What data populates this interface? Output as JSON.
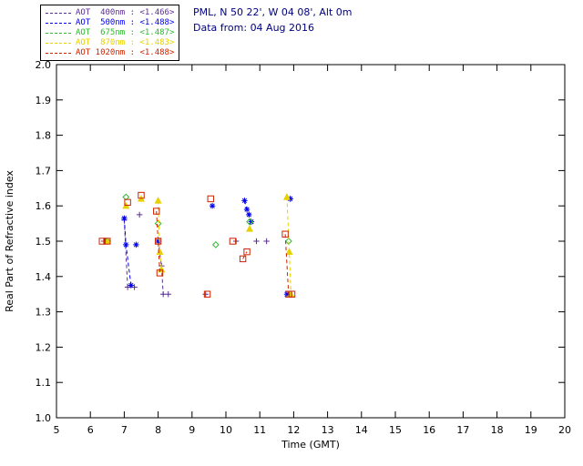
{
  "header": {
    "site_line": "PML, N 50 22', W 04 08', Alt 0m",
    "date_line": "Data from: 04 Aug 2016",
    "text_color": "#000080"
  },
  "chart_data": {
    "type": "scatter",
    "title": "",
    "xlabel": "Time (GMT)",
    "ylabel": "Real Part of Refractive index",
    "xlim": [
      5,
      20
    ],
    "ylim": [
      1.0,
      2.0
    ],
    "xticks": [
      5,
      6,
      7,
      8,
      9,
      10,
      11,
      12,
      13,
      14,
      15,
      16,
      17,
      18,
      19,
      20
    ],
    "yticks": [
      1.0,
      1.1,
      1.2,
      1.3,
      1.4,
      1.5,
      1.6,
      1.7,
      1.8,
      1.9,
      2.0
    ],
    "grid": false,
    "line_style": "dashed",
    "legend_position": "top-left",
    "series": [
      {
        "id": "400nm",
        "name": "AOT  400nm",
        "mean": "<1.466>",
        "color": "#5c2d91",
        "marker": "plus",
        "segments": [
          [
            [
              6.4,
              1.5
            ]
          ],
          [
            [
              7.0,
              1.56
            ],
            [
              7.1,
              1.37
            ]
          ],
          [
            [
              7.3,
              1.37
            ]
          ],
          [
            [
              7.45,
              1.575
            ]
          ],
          [
            [
              8.0,
              1.5
            ],
            [
              8.1,
              1.43
            ],
            [
              8.15,
              1.35
            ]
          ],
          [
            [
              8.3,
              1.35
            ]
          ],
          [
            [
              9.4,
              1.35
            ]
          ],
          [
            [
              10.3,
              1.5
            ]
          ],
          [
            [
              10.9,
              1.5
            ]
          ],
          [
            [
              11.2,
              1.5
            ]
          ],
          [
            [
              11.9,
              1.62
            ]
          ]
        ]
      },
      {
        "id": "500nm",
        "name": "AOT  500nm",
        "mean": "<1.488>",
        "color": "#0000ee",
        "marker": "asterisk",
        "segments": [
          [
            [
              6.45,
              1.5
            ]
          ],
          [
            [
              7.0,
              1.565
            ],
            [
              7.05,
              1.49
            ],
            [
              7.2,
              1.375
            ]
          ],
          [
            [
              7.35,
              1.49
            ]
          ],
          [
            [
              8.0,
              1.5
            ]
          ],
          [
            [
              9.6,
              1.6
            ]
          ],
          [
            [
              10.55,
              1.615
            ],
            [
              10.62,
              1.59
            ],
            [
              10.68,
              1.575
            ],
            [
              10.75,
              1.555
            ]
          ],
          [
            [
              11.9,
              1.62
            ]
          ],
          [
            [
              11.8,
              1.35
            ]
          ]
        ]
      },
      {
        "id": "675nm",
        "name": "AOT  675nm",
        "mean": "<1.487>",
        "color": "#2eb82e",
        "marker": "diamond",
        "segments": [
          [
            [
              6.5,
              1.5
            ]
          ],
          [
            [
              7.05,
              1.625
            ]
          ],
          [
            [
              8.0,
              1.55
            ]
          ],
          [
            [
              9.7,
              1.49
            ]
          ],
          [
            [
              10.7,
              1.555
            ]
          ],
          [
            [
              11.85,
              1.5
            ]
          ]
        ]
      },
      {
        "id": "870nm",
        "name": "AOT  870nm",
        "mean": "<1.483>",
        "color": "#e6d000",
        "marker": "triangle",
        "segments": [
          [
            [
              6.5,
              1.5
            ]
          ],
          [
            [
              7.05,
              1.6
            ]
          ],
          [
            [
              7.5,
              1.62
            ]
          ],
          [
            [
              8.0,
              1.615
            ],
            [
              8.05,
              1.47
            ],
            [
              8.1,
              1.42
            ]
          ],
          [
            [
              10.7,
              1.535
            ]
          ],
          [
            [
              11.8,
              1.625
            ],
            [
              11.87,
              1.47
            ],
            [
              11.92,
              1.35
            ]
          ]
        ]
      },
      {
        "id": "1020nm",
        "name": "AOT 1020nm",
        "mean": "<1.488>",
        "color": "#cc2200",
        "marker": "square",
        "segments": [
          [
            [
              6.35,
              1.5
            ],
            [
              6.5,
              1.5
            ]
          ],
          [
            [
              7.1,
              1.61
            ]
          ],
          [
            [
              7.5,
              1.63
            ]
          ],
          [
            [
              7.95,
              1.585
            ],
            [
              8.0,
              1.5
            ],
            [
              8.05,
              1.41
            ]
          ],
          [
            [
              9.45,
              1.35
            ]
          ],
          [
            [
              9.55,
              1.62
            ]
          ],
          [
            [
              10.2,
              1.5
            ]
          ],
          [
            [
              10.5,
              1.45
            ],
            [
              10.62,
              1.47
            ]
          ],
          [
            [
              11.75,
              1.52
            ],
            [
              11.85,
              1.35
            ],
            [
              11.95,
              1.35
            ]
          ]
        ]
      }
    ]
  }
}
